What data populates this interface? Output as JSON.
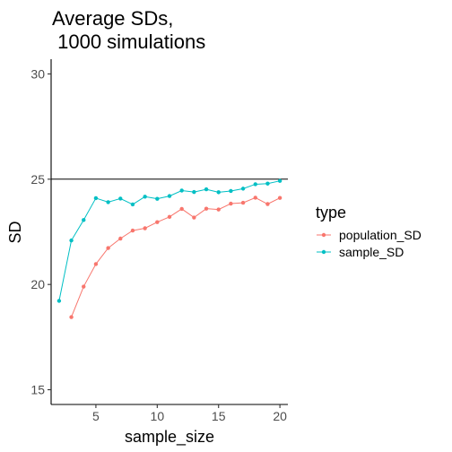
{
  "chart_data": {
    "type": "line",
    "title_line1": "Average SDs,",
    "title_line2": " 1000 simulations",
    "xlabel": "sample_size",
    "ylabel": "SD",
    "xlim": [
      1.35,
      20.65
    ],
    "ylim": [
      14.3,
      30.7
    ],
    "x_ticks": [
      5,
      10,
      15,
      20
    ],
    "y_ticks": [
      15,
      20,
      25,
      30
    ],
    "grid": false,
    "hline": 25,
    "legend": {
      "title": "type",
      "position": "right"
    },
    "series": [
      {
        "name": "population_SD",
        "color": "#F8766D",
        "x": [
          3,
          4,
          5,
          6,
          7,
          8,
          9,
          10,
          11,
          12,
          13,
          14,
          15,
          16,
          17,
          18,
          19,
          20
        ],
        "y": [
          18.45,
          19.9,
          20.97,
          21.73,
          22.18,
          22.56,
          22.67,
          22.96,
          23.21,
          23.59,
          23.18,
          23.6,
          23.56,
          23.84,
          23.88,
          24.12,
          23.82,
          24.11
        ]
      },
      {
        "name": "sample_SD",
        "color": "#00BFC4",
        "x": [
          2,
          3,
          4,
          5,
          6,
          7,
          8,
          9,
          10,
          11,
          12,
          13,
          14,
          15,
          16,
          17,
          18,
          19,
          20
        ],
        "y": [
          19.22,
          22.09,
          23.06,
          24.1,
          23.91,
          24.08,
          23.8,
          24.17,
          24.07,
          24.2,
          24.46,
          24.39,
          24.52,
          24.38,
          24.44,
          24.55,
          24.76,
          24.79,
          24.92
        ]
      }
    ]
  }
}
